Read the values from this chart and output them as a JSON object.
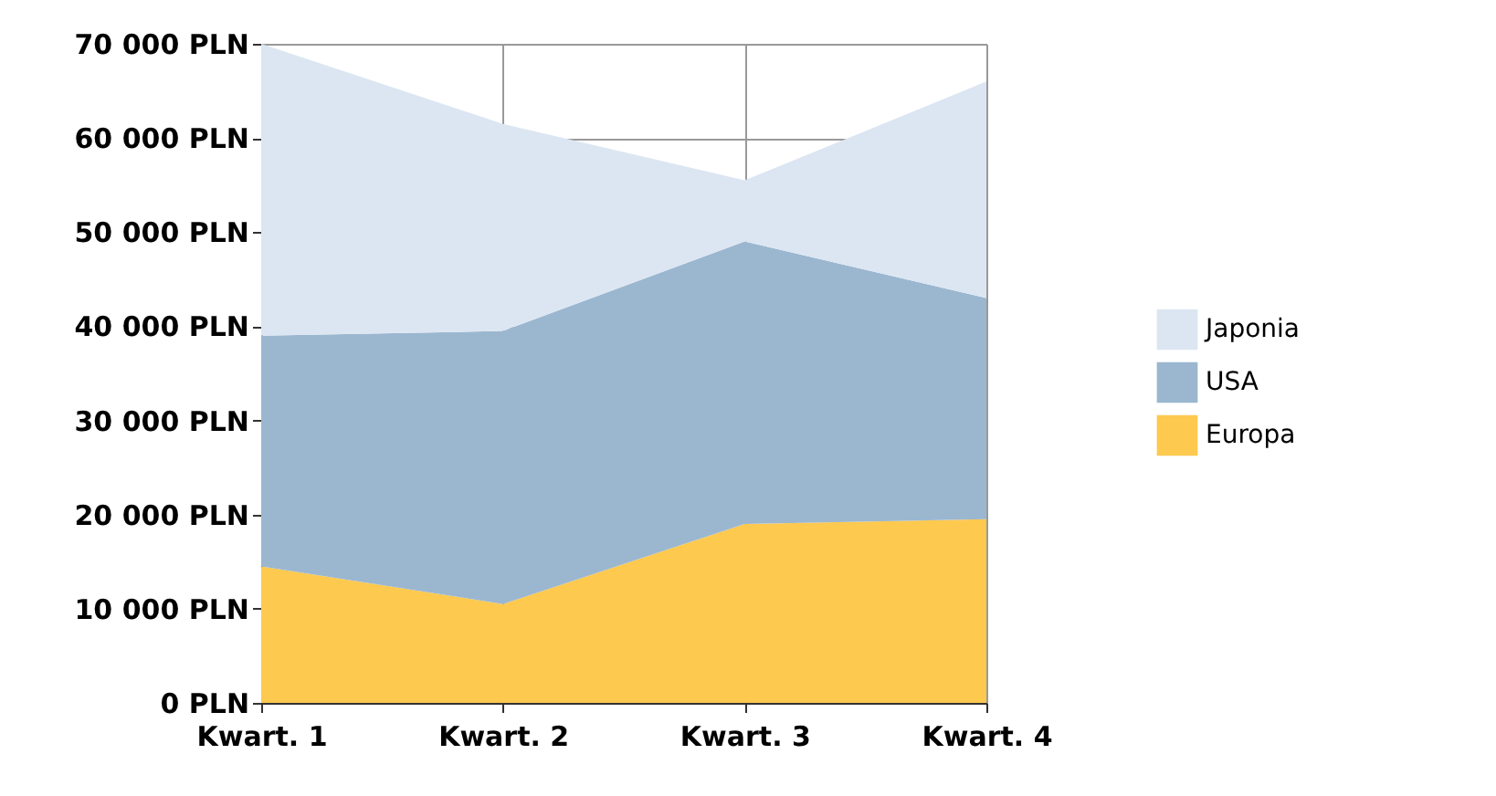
{
  "chart_data": {
    "type": "area",
    "stacked": true,
    "categories": [
      "Kwart. 1",
      "Kwart. 2",
      "Kwart. 3",
      "Kwart. 4"
    ],
    "series": [
      {
        "name": "Europa",
        "color": "#fdc94f",
        "values": [
          14500,
          10500,
          19000,
          19500
        ]
      },
      {
        "name": "USA",
        "color": "#9bb7d0",
        "values": [
          24500,
          29000,
          30000,
          23500
        ]
      },
      {
        "name": "Japonia",
        "color": "#dce6f2",
        "values": [
          31000,
          22000,
          6500,
          23000
        ]
      }
    ],
    "ylim": [
      0,
      70000
    ],
    "yticks": [
      {
        "value": 0,
        "label": "0 PLN"
      },
      {
        "value": 10000,
        "label": "10 000 PLN"
      },
      {
        "value": 20000,
        "label": "20 000 PLN"
      },
      {
        "value": 30000,
        "label": "30 000 PLN"
      },
      {
        "value": 40000,
        "label": "40 000 PLN"
      },
      {
        "value": 50000,
        "label": "50 000 PLN"
      },
      {
        "value": 60000,
        "label": "60 000 PLN"
      },
      {
        "value": 70000,
        "label": "70 000 PLN"
      }
    ],
    "grid": true,
    "legend": "right"
  }
}
